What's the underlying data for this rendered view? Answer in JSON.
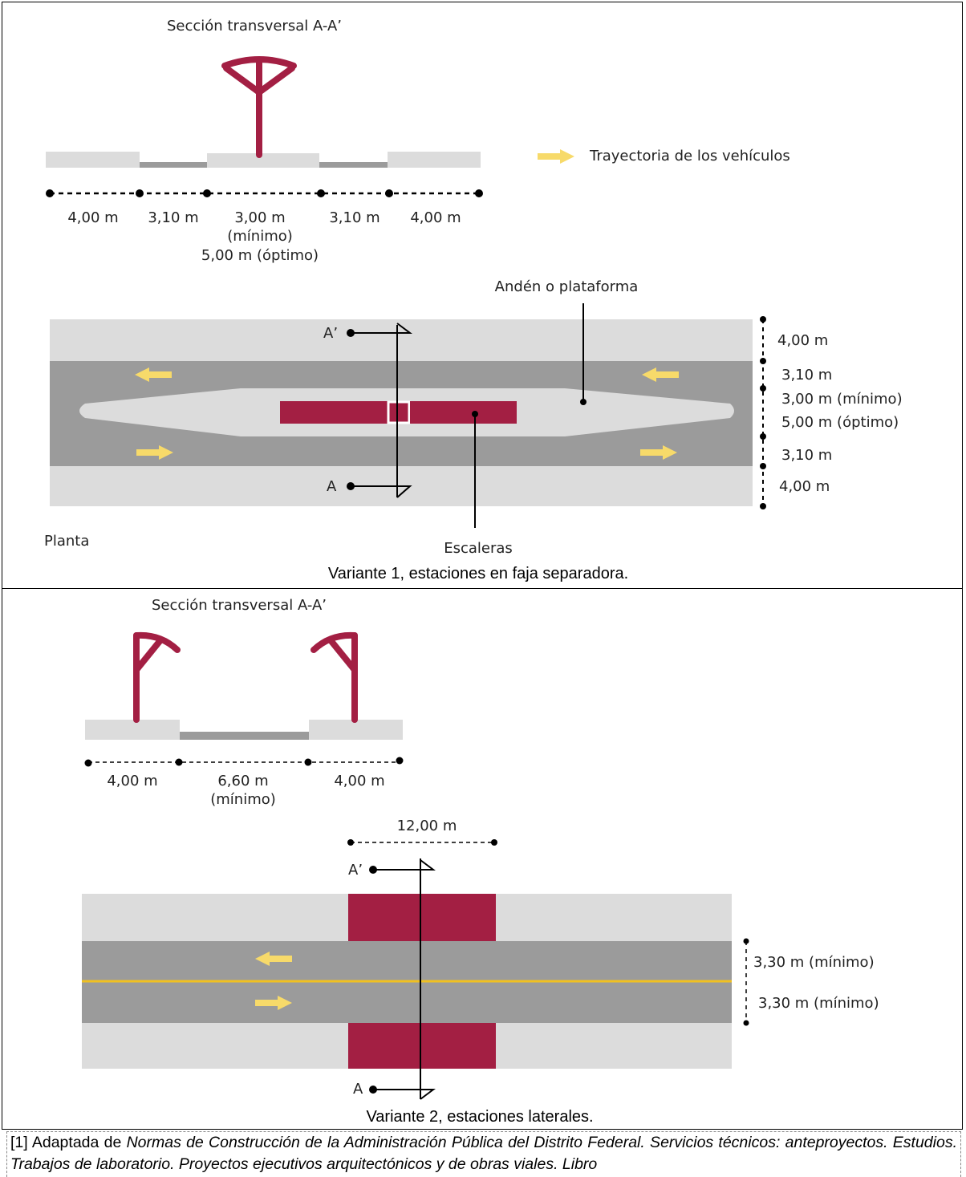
{
  "variant1": {
    "section_title": "Sección transversal A-A’",
    "legend_text": "Trayectoria de los vehículos",
    "section_dims": [
      "4,00 m",
      "3,10 m",
      "3,00 m",
      "3,10 m",
      "4,00 m"
    ],
    "section_dim_min": "(mínimo)",
    "section_dim_opt": "5,00 m (óptimo)",
    "platform_label": "Andén o plataforma",
    "stairs_label": "Escaleras",
    "plan_label": "Planta",
    "marker_top": "A’",
    "marker_bottom": "A",
    "side_dims": [
      "4,00 m",
      "3,10 m",
      "3,00 m (mínimo)",
      "5,00 m (óptimo)",
      "3,10 m",
      "4,00 m"
    ],
    "caption": "Variante 1, estaciones en faja separadora."
  },
  "variant2": {
    "section_title": "Sección transversal A-A’",
    "section_dims": [
      "4,00 m",
      "6,60 m",
      "4,00 m"
    ],
    "section_dim_min": "(mínimo)",
    "station_width": "12,00 m",
    "marker_top": "A’",
    "marker_bottom": "A",
    "side_dims": [
      "3,30 m (mínimo)",
      "3,30 m (mínimo)"
    ],
    "caption": "Variante 2, estaciones laterales."
  },
  "footnote": {
    "prefix": "[1] Adaptada de ",
    "title": "Normas de Construcción de la Administración Pública del Distrito Federal. Servicios técnicos: anteproyectos. Estudios. Trabajos de laboratorio. Proyectos ejecutivos arquitectónicos y de obras viales. Libro"
  },
  "colors": {
    "sidewalk": "#dcdcdc",
    "road": "#9b9b9b",
    "station": "#a31f43",
    "arrow": "#f7da6a",
    "centerline": "#f0c020"
  }
}
